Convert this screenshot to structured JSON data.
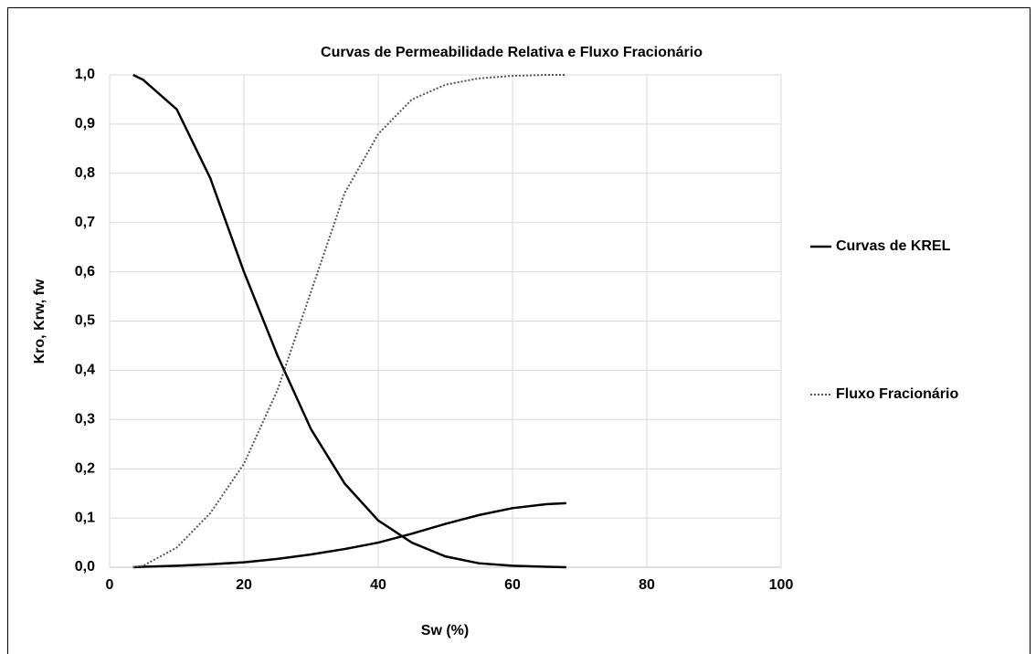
{
  "chart_data": {
    "type": "line",
    "title": "Curvas de Permeabilidade Relativa e Fluxo Fracionário",
    "xlabel": "Sw (%)",
    "ylabel": "Kro, Krw, fw",
    "x": [
      3.5,
      5,
      10,
      15,
      20,
      25,
      30,
      35,
      40,
      45,
      50,
      55,
      60,
      65,
      68
    ],
    "series": [
      {
        "name": "Curvas de KREL",
        "color": "#000000",
        "dash": "solid",
        "values": [
          1.0,
          0.99,
          0.93,
          0.79,
          0.6,
          0.43,
          0.28,
          0.17,
          0.095,
          0.05,
          0.022,
          0.008,
          0.003,
          0.001,
          0.0
        ]
      },
      {
        "color": "#000000",
        "dash": "solid",
        "values": [
          0.0,
          0.001,
          0.003,
          0.006,
          0.01,
          0.017,
          0.026,
          0.037,
          0.05,
          0.068,
          0.088,
          0.106,
          0.12,
          0.128,
          0.13
        ]
      },
      {
        "name": "Fluxo Fracionário",
        "color": "#555555",
        "dash": "dotted",
        "values": [
          0.0,
          0.003,
          0.04,
          0.11,
          0.21,
          0.36,
          0.56,
          0.76,
          0.88,
          0.95,
          0.98,
          0.993,
          0.998,
          1.0,
          1.0
        ]
      }
    ],
    "xlim": [
      0,
      100
    ],
    "xticks": [
      0,
      20,
      40,
      60,
      80,
      100
    ],
    "ylim": [
      0,
      1
    ],
    "yticks": [
      {
        "value": 0,
        "label": "0,0"
      },
      {
        "value": 0.1,
        "label": "0,1"
      },
      {
        "value": 0.2,
        "label": "0,2"
      },
      {
        "value": 0.3,
        "label": "0,3"
      },
      {
        "value": 0.4,
        "label": "0,4"
      },
      {
        "value": 0.5,
        "label": "0,5"
      },
      {
        "value": 0.6,
        "label": "0,6"
      },
      {
        "value": 0.7,
        "label": "0,7"
      },
      {
        "value": 0.8,
        "label": "0,8"
      },
      {
        "value": 0.9,
        "label": "0,9"
      },
      {
        "value": 1,
        "label": "1,0"
      }
    ],
    "grid": true,
    "legend": "right"
  }
}
